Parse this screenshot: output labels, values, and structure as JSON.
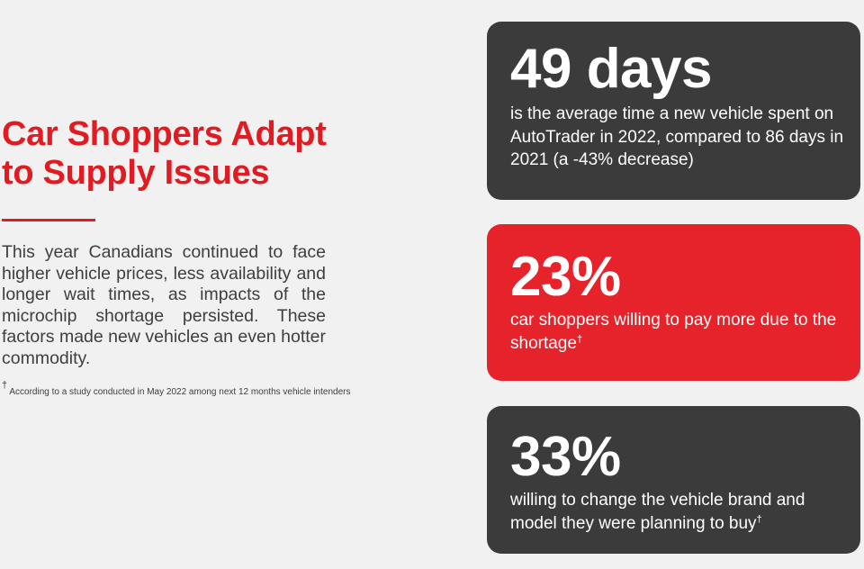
{
  "headline": {
    "line1": "Car Shoppers Adapt",
    "line2": "to Supply Issues"
  },
  "intro": "This year Canadians continued to face higher vehicle prices, less availability and longer wait times, as impacts of the microchip shortage persisted. These factors made new vehicles an even hotter commodity.",
  "footnote": {
    "marker": "†",
    "text": " According to a study conducted in May 2022 among next 12 months vehicle intenders"
  },
  "cards": [
    {
      "stat": "49 days",
      "description": "is the average time a new vehicle spent on AutoTrader in 2022, compared to 86 days in 2021 (a -43% decrease)",
      "marker": "",
      "color": "#3b3b3b"
    },
    {
      "stat": "23%",
      "description": "car shoppers willing to pay more due to the shortage",
      "marker": "†",
      "color": "#e6232b"
    },
    {
      "stat": "33%",
      "description": "willing to change the vehicle brand and model they were planning to buy",
      "marker": "†",
      "color": "#3b3b3b"
    }
  ],
  "colors": {
    "accent": "#e11b22",
    "background": "#f2f1f1",
    "body_text": "#3e3e3e"
  }
}
